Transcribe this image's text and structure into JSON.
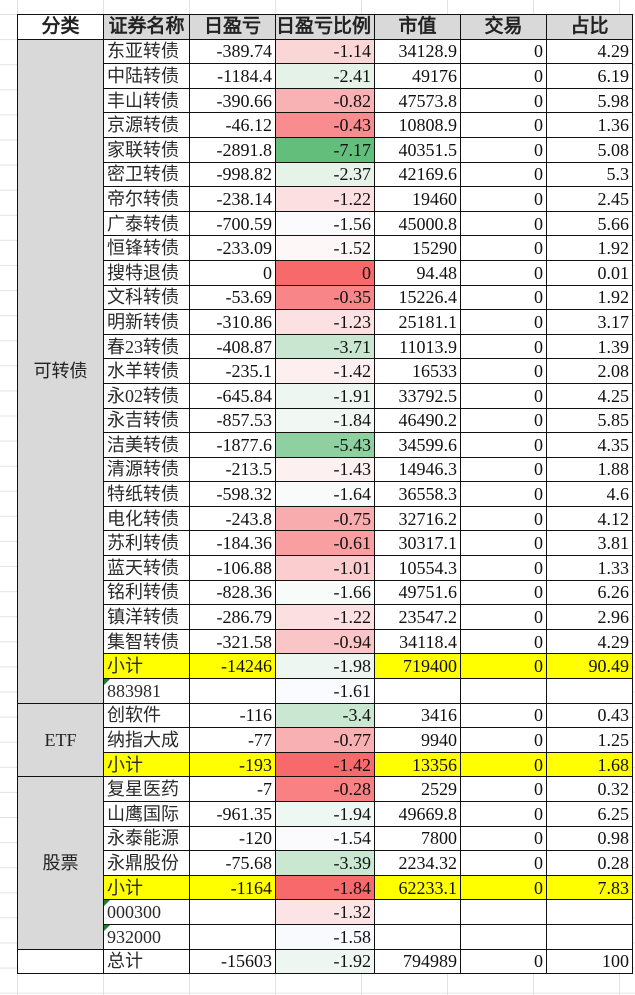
{
  "header": [
    "分类",
    "证券名称",
    "日盈亏",
    "日盈亏比例",
    "市值",
    "交易",
    "占比"
  ],
  "groups": [
    {
      "category": "可转债",
      "rows": [
        {
          "name": "东亚转债",
          "pnl": "-389.74",
          "ratio": "-1.14",
          "value": "34128.9",
          "trade": "0",
          "share": "4.29",
          "color": "#fbd6d7"
        },
        {
          "name": "中陆转债",
          "pnl": "-1184.4",
          "ratio": "-2.41",
          "value": "49176",
          "trade": "0",
          "share": "6.19",
          "color": "#e4f2e8"
        },
        {
          "name": "丰山转债",
          "pnl": "-390.66",
          "ratio": "-0.82",
          "value": "47573.8",
          "trade": "0",
          "share": "5.98",
          "color": "#f9b2b4"
        },
        {
          "name": "京源转债",
          "pnl": "-46.12",
          "ratio": "-0.43",
          "value": "10808.9",
          "trade": "0",
          "share": "1.36",
          "color": "#f88c8e"
        },
        {
          "name": "家联转债",
          "pnl": "-2891.8",
          "ratio": "-7.17",
          "value": "40351.5",
          "trade": "0",
          "share": "5.08",
          "color": "#63be7b"
        },
        {
          "name": "密卫转债",
          "pnl": "-998.82",
          "ratio": "-2.37",
          "value": "42169.6",
          "trade": "0",
          "share": "5.3",
          "color": "#e5f3e9"
        },
        {
          "name": "帝尔转债",
          "pnl": "-238.14",
          "ratio": "-1.22",
          "value": "19460",
          "trade": "0",
          "share": "2.45",
          "color": "#fcdfe0"
        },
        {
          "name": "广泰转债",
          "pnl": "-700.59",
          "ratio": "-1.56",
          "value": "45000.8",
          "trade": "0",
          "share": "5.66",
          "color": "#fbfbfe"
        },
        {
          "name": "恒锋转债",
          "pnl": "-233.09",
          "ratio": "-1.52",
          "value": "15290",
          "trade": "0",
          "share": "1.92",
          "color": "#fdf7f8"
        },
        {
          "name": "搜特退债",
          "pnl": "0",
          "ratio": "0",
          "value": "94.48",
          "trade": "0",
          "share": "0.01",
          "color": "#f8696b"
        },
        {
          "name": "文科转债",
          "pnl": "-53.69",
          "ratio": "-0.35",
          "value": "15226.4",
          "trade": "0",
          "share": "1.92",
          "color": "#f88587"
        },
        {
          "name": "明新转债",
          "pnl": "-310.86",
          "ratio": "-1.23",
          "value": "25181.1",
          "trade": "0",
          "share": "3.17",
          "color": "#fce1e2"
        },
        {
          "name": "春23转债",
          "pnl": "-408.87",
          "ratio": "-3.71",
          "value": "11013.9",
          "trade": "0",
          "share": "1.39",
          "color": "#c8e6d0"
        },
        {
          "name": "水羊转债",
          "pnl": "-235.1",
          "ratio": "-1.42",
          "value": "16533",
          "trade": "0",
          "share": "2.08",
          "color": "#fdeff0"
        },
        {
          "name": "永02转债",
          "pnl": "-645.84",
          "ratio": "-1.91",
          "value": "33792.5",
          "trade": "0",
          "share": "4.25",
          "color": "#eef6f1"
        },
        {
          "name": "永吉转债",
          "pnl": "-857.53",
          "ratio": "-1.84",
          "value": "46490.2",
          "trade": "0",
          "share": "5.85",
          "color": "#f1f8f4"
        },
        {
          "name": "洁美转债",
          "pnl": "-1877.6",
          "ratio": "-5.43",
          "value": "34599.6",
          "trade": "0",
          "share": "4.35",
          "color": "#8fd0a0"
        },
        {
          "name": "清源转债",
          "pnl": "-213.5",
          "ratio": "-1.43",
          "value": "14946.3",
          "trade": "0",
          "share": "1.88",
          "color": "#fdf0f1"
        },
        {
          "name": "特纸转债",
          "pnl": "-598.32",
          "ratio": "-1.64",
          "value": "36558.3",
          "trade": "0",
          "share": "4.6",
          "color": "#f8fbfa"
        },
        {
          "name": "电化转债",
          "pnl": "-243.8",
          "ratio": "-0.75",
          "value": "32716.2",
          "trade": "0",
          "share": "4.12",
          "color": "#f9acae"
        },
        {
          "name": "苏利转债",
          "pnl": "-184.36",
          "ratio": "-0.61",
          "value": "30317.1",
          "trade": "0",
          "share": "3.81",
          "color": "#f99fa1"
        },
        {
          "name": "蓝天转债",
          "pnl": "-106.88",
          "ratio": "-1.01",
          "value": "10554.3",
          "trade": "0",
          "share": "1.33",
          "color": "#fbcdce"
        },
        {
          "name": "铭利转债",
          "pnl": "-828.36",
          "ratio": "-1.66",
          "value": "49751.6",
          "trade": "0",
          "share": "6.26",
          "color": "#f7fbf9"
        },
        {
          "name": "镇洋转债",
          "pnl": "-286.79",
          "ratio": "-1.22",
          "value": "23547.2",
          "trade": "0",
          "share": "2.96",
          "color": "#fcdfe0"
        },
        {
          "name": "集智转债",
          "pnl": "-321.58",
          "ratio": "-0.94",
          "value": "34118.4",
          "trade": "0",
          "share": "4.29",
          "color": "#fac5c7"
        },
        {
          "name": "小计",
          "pnl": "-14246",
          "ratio": "-1.98",
          "value": "719400",
          "trade": "0",
          "share": "90.49",
          "color": "#edf6f1",
          "subtotal": true
        },
        {
          "name": "883981",
          "pnl": "",
          "ratio": "-1.61",
          "value": "",
          "trade": "",
          "share": "",
          "color": "#fafbfe",
          "text_number": true
        }
      ]
    },
    {
      "category": "ETF",
      "rows": [
        {
          "name": "创软件",
          "pnl": "-116",
          "ratio": "-3.4",
          "value": "3416",
          "trade": "0",
          "share": "0.43",
          "color": "#c9e7d1"
        },
        {
          "name": "纳指大成",
          "pnl": "-77",
          "ratio": "-0.77",
          "value": "9940",
          "trade": "0",
          "share": "1.25",
          "color": "#f9b0b2"
        },
        {
          "name": "小计",
          "pnl": "-193",
          "ratio": "-1.42",
          "value": "13356",
          "trade": "0",
          "share": "1.68",
          "color": "#f8696b",
          "subtotal": true
        }
      ]
    },
    {
      "category": "股票",
      "rows": [
        {
          "name": "复星医药",
          "pnl": "-7",
          "ratio": "-0.28",
          "value": "2529",
          "trade": "0",
          "share": "0.32",
          "color": "#f98183"
        },
        {
          "name": "山鹰国际",
          "pnl": "-961.35",
          "ratio": "-1.94",
          "value": "49669.8",
          "trade": "0",
          "share": "6.25",
          "color": "#eef7f1"
        },
        {
          "name": "永泰能源",
          "pnl": "-120",
          "ratio": "-1.54",
          "value": "7800",
          "trade": "0",
          "share": "0.98",
          "color": "#fbfbfe"
        },
        {
          "name": "永鼎股份",
          "pnl": "-75.68",
          "ratio": "-3.39",
          "value": "2234.32",
          "trade": "0",
          "share": "0.28",
          "color": "#c9e7d1"
        },
        {
          "name": "小计",
          "pnl": "-1164",
          "ratio": "-1.84",
          "value": "62233.1",
          "trade": "0",
          "share": "7.83",
          "color": "#f8696b",
          "subtotal": true
        },
        {
          "name": "000300",
          "pnl": "",
          "ratio": "-1.32",
          "value": "",
          "trade": "",
          "share": "",
          "color": "#fce4e6",
          "text_number": true
        },
        {
          "name": "932000",
          "pnl": "",
          "ratio": "-1.58",
          "value": "",
          "trade": "",
          "share": "",
          "color": "#f9fafe",
          "text_number": true
        }
      ]
    },
    {
      "category": "",
      "rows": [
        {
          "name": "总计",
          "pnl": "-15603",
          "ratio": "-1.92",
          "value": "794989",
          "trade": "0",
          "share": "100",
          "color": "#eef6f1"
        }
      ]
    }
  ]
}
